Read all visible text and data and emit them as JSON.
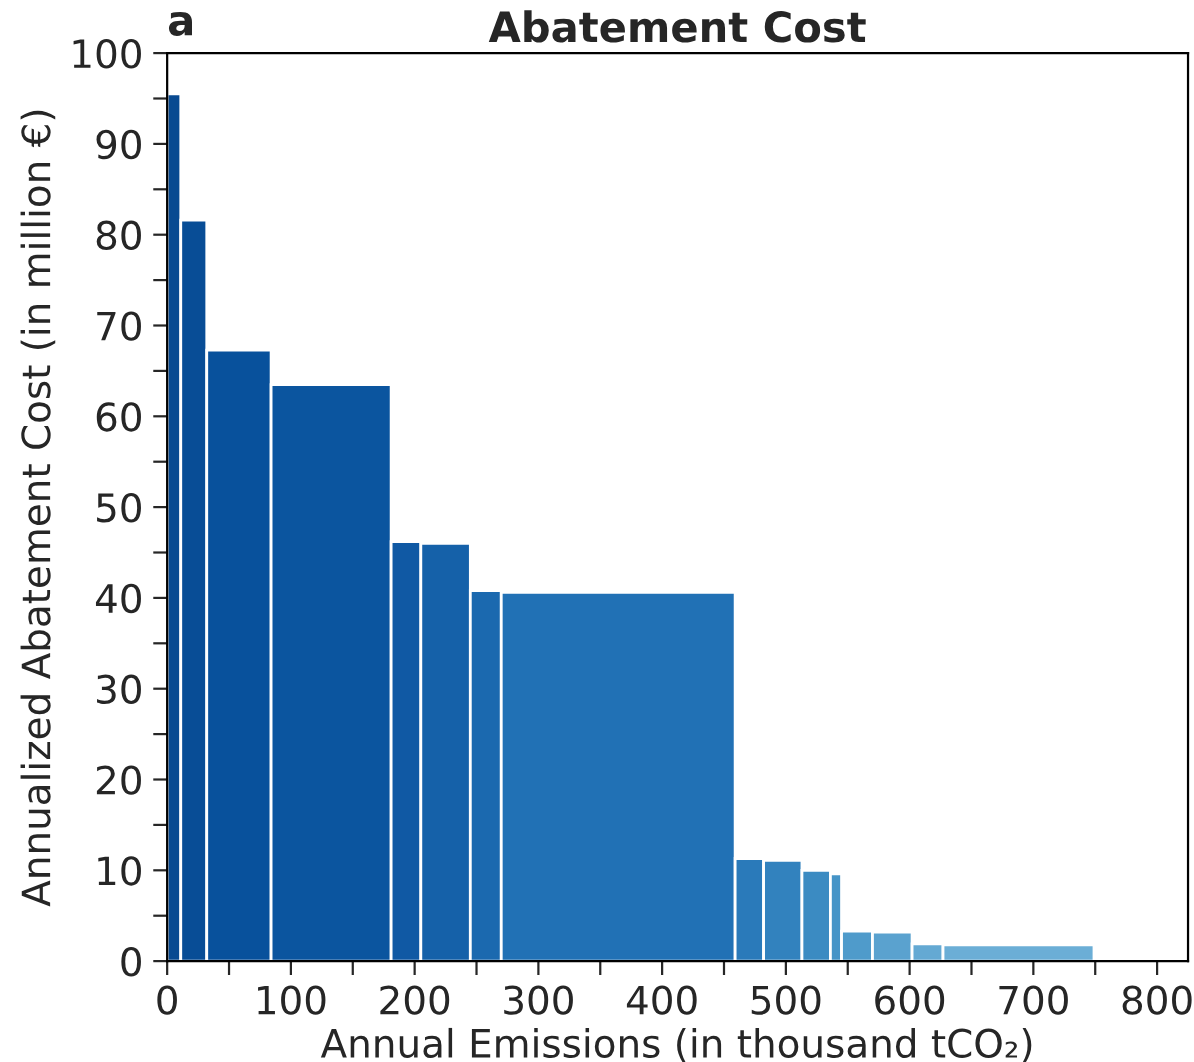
{
  "chart_data": {
    "type": "histogram",
    "title": "Abatement Cost",
    "xlabel": "Annual Emissions (in thousand tCO₂)",
    "ylabel": "Annualized Abatement Cost (in million €)",
    "annotations": [
      "a"
    ],
    "bins": [
      0,
      11,
      32,
      84,
      181,
      205,
      245,
      270,
      459,
      482,
      513,
      536,
      545,
      570,
      602,
      627,
      749
    ],
    "values": [
      95.5,
      81.6,
      67.3,
      63.5,
      46.2,
      46,
      40.8,
      40.6,
      11.3,
      11.1,
      10,
      9.6,
      3.3,
      3.2,
      1.9,
      1.8
    ],
    "colors": [
      "#084a91",
      "#084d96",
      "#08519c",
      "#0b559f",
      "#1059a4",
      "#1561a9",
      "#1b69af",
      "#2171b5",
      "#2a7aba",
      "#3282be",
      "#3b8bc2",
      "#4594c7",
      "#4f9bcb",
      "#5aa2cf",
      "#64a9d3",
      "#6baed6"
    ],
    "xlim": [
      0,
      825
    ],
    "ylim": [
      0,
      100
    ],
    "xticks": [
      0,
      {
        "value": 50,
        "label": null
      },
      100,
      {
        "value": 150,
        "label": null
      },
      200,
      {
        "value": 250,
        "label": null
      },
      300,
      {
        "value": 350,
        "label": null
      },
      400,
      {
        "value": 450,
        "label": null
      },
      500,
      {
        "value": 550,
        "label": null
      },
      600,
      {
        "value": 650,
        "label": null
      },
      700,
      {
        "value": 750,
        "label": null
      },
      800
    ],
    "yticks": [
      0,
      {
        "value": 5,
        "label": null
      },
      10,
      {
        "value": 15,
        "label": null
      },
      20,
      {
        "value": 25,
        "label": null
      },
      30,
      {
        "value": 35,
        "label": null
      },
      40,
      {
        "value": 45,
        "label": null
      },
      50,
      {
        "value": 55,
        "label": null
      },
      60,
      {
        "value": 65,
        "label": null
      },
      70,
      {
        "value": 75,
        "label": null
      },
      80,
      {
        "value": 85,
        "label": null
      },
      90,
      {
        "value": 95,
        "label": null
      },
      100
    ],
    "grid": false,
    "legend": false
  }
}
